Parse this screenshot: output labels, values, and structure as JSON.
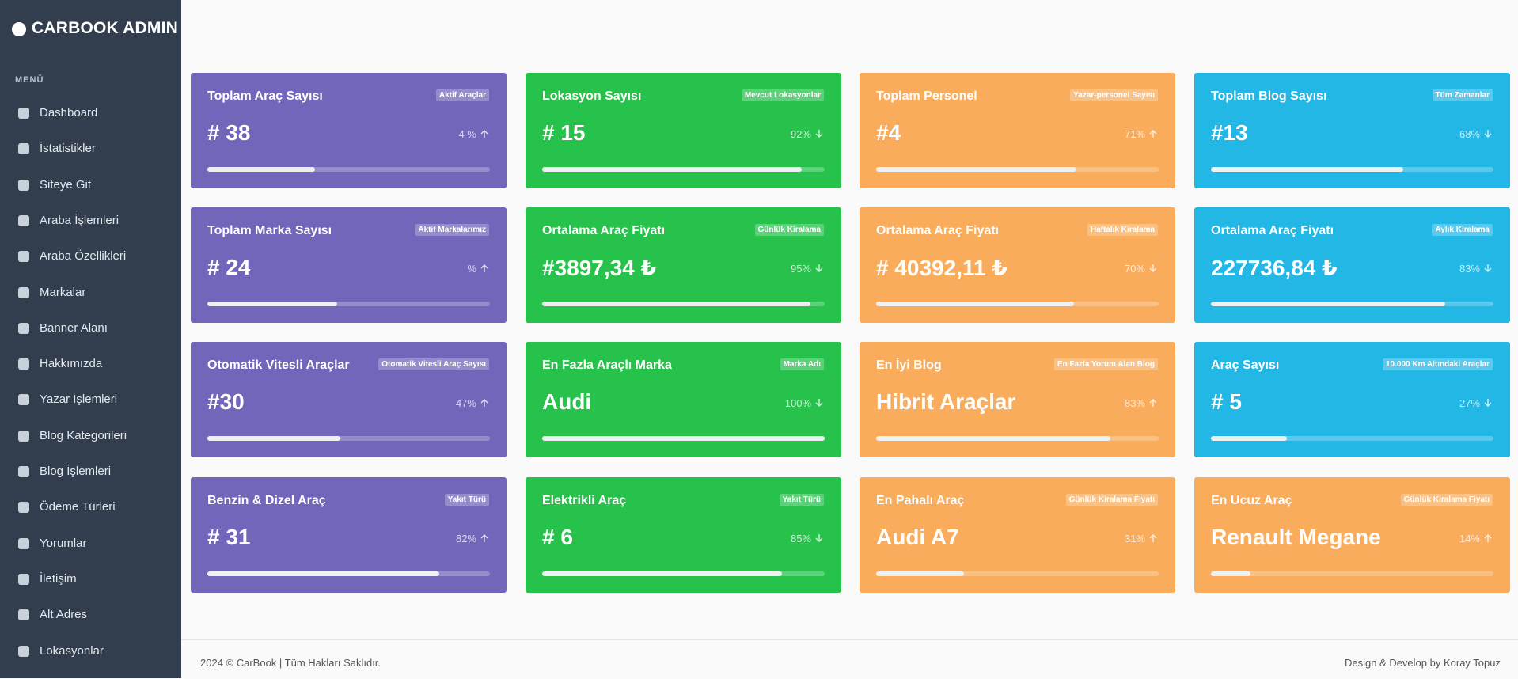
{
  "sidebar": {
    "brand": "CARBOOK ADMIN",
    "menu_label": "MENÜ",
    "items": [
      "Dashboard",
      "İstatistikler",
      "Siteye Git",
      "Araba İşlemleri",
      "Araba Özellikleri",
      "Markalar",
      "Banner Alanı",
      "Hakkımızda",
      "Yazar İşlemleri",
      "Blog Kategorileri",
      "Blog İşlemleri",
      "Ödeme Türleri",
      "Yorumlar",
      "İletişim",
      "Alt Adres",
      "Lokasyonlar"
    ]
  },
  "cards": [
    {
      "title": "Toplam Araç Sayısı",
      "badge": "Aktif Araçlar",
      "value": "# 38",
      "change": "4 %",
      "trend": "up",
      "progress": 38,
      "color": "#7266ba"
    },
    {
      "title": "Lokasyon Sayısı",
      "badge": "Mevcut Lokasyonlar",
      "value": "# 15",
      "change": "92%",
      "trend": "down",
      "progress": 92,
      "color": "#27c24c"
    },
    {
      "title": "Toplam Personel",
      "badge": "Yazar-personel Sayısı",
      "value": "#4",
      "change": "71%",
      "trend": "up",
      "progress": 71,
      "color": "#f9ad5c"
    },
    {
      "title": "Toplam Blog Sayısı",
      "badge": "Tüm Zamanlar",
      "value": "#13",
      "change": "68%",
      "trend": "down",
      "progress": 68,
      "color": "#23b7e5"
    },
    {
      "title": "Toplam Marka Sayısı",
      "badge": "Aktif Markalarımız",
      "value": "# 24",
      "change": "%",
      "trend": "up",
      "progress": 46,
      "color": "#7266ba"
    },
    {
      "title": "Ortalama Araç Fiyatı",
      "badge": "Günlük Kiralama",
      "value": "#3897,34 ₺",
      "change": "95%",
      "trend": "down",
      "progress": 95,
      "color": "#27c24c"
    },
    {
      "title": "Ortalama Araç Fiyatı",
      "badge": "Haftalık Kiralama",
      "value": "# 40392,11 ₺",
      "change": "70%",
      "trend": "down",
      "progress": 70,
      "color": "#f9ad5c"
    },
    {
      "title": "Ortalama Araç Fiyatı",
      "badge": "Aylık Kiralama",
      "value": "227736,84 ₺",
      "change": "83%",
      "trend": "down",
      "progress": 83,
      "color": "#23b7e5"
    },
    {
      "title": "Otomatik Vitesli Araçlar",
      "badge": "Otomatik Vitesli Araç Sayısı",
      "value": "#30",
      "change": "47%",
      "trend": "up",
      "progress": 47,
      "color": "#7266ba"
    },
    {
      "title": "En Fazla Araçlı Marka",
      "badge": "Marka Adı",
      "value": "Audi",
      "change": "100%",
      "trend": "down",
      "progress": 100,
      "color": "#27c24c"
    },
    {
      "title": "En İyi Blog",
      "badge": "En Fazla Yorum Alan Blog",
      "value": "Hibrit Araçlar",
      "change": "83%",
      "trend": "up",
      "progress": 83,
      "color": "#f9ad5c"
    },
    {
      "title": "Araç Sayısı",
      "badge": "10.000 Km Altındaki Araçlar",
      "value": "# 5",
      "change": "27%",
      "trend": "down",
      "progress": 27,
      "color": "#23b7e5"
    },
    {
      "title": "Benzin & Dizel Araç",
      "badge": "Yakıt Türü",
      "value": "# 31",
      "change": "82%",
      "trend": "up",
      "progress": 82,
      "color": "#7266ba"
    },
    {
      "title": "Elektrikli Araç",
      "badge": "Yakıt Türü",
      "value": "# 6",
      "change": "85%",
      "trend": "down",
      "progress": 85,
      "color": "#27c24c"
    },
    {
      "title": "En Pahalı Araç",
      "badge": "Günlük Kiralama Fiyatı",
      "value": "Audi A7",
      "change": "31%",
      "trend": "up",
      "progress": 31,
      "color": "#f9ad5c"
    },
    {
      "title": "En Ucuz Araç",
      "badge": "Günlük Kiralama Fiyatı",
      "value": "Renault Megane",
      "change": "14%",
      "trend": "up",
      "progress": 14,
      "color": "#f9ad5c"
    }
  ],
  "footer": {
    "copyright": "2024 © CarBook | Tüm Hakları Saklıdır.",
    "credit": "Design & Develop by Koray Topuz"
  }
}
